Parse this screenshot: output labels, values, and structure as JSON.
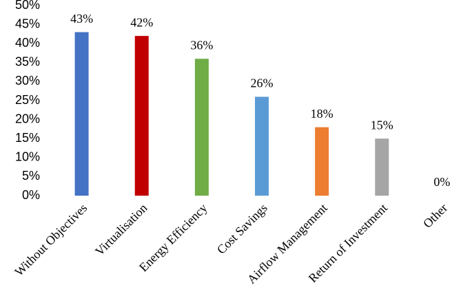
{
  "chart_data": {
    "type": "bar",
    "categories": [
      "Without Objectives",
      "Virtualisation",
      "Energy Efficiency",
      "Cost Savings",
      "Airflow Management",
      "Return of Investment",
      "Other"
    ],
    "values": [
      43,
      42,
      36,
      26,
      18,
      15,
      0
    ],
    "value_labels": [
      "43%",
      "42%",
      "36%",
      "26%",
      "18%",
      "15%",
      "0%"
    ],
    "colors": [
      "#4472c4",
      "#c00000",
      "#70ad47",
      "#5b9bd5",
      "#ed7d31",
      "#a5a5a5",
      "#7f7f7f"
    ],
    "ylim": [
      0,
      50
    ],
    "yticks": [
      {
        "value": 0,
        "label": "0%"
      },
      {
        "value": 5,
        "label": "5%"
      },
      {
        "value": 10,
        "label": "10%"
      },
      {
        "value": 15,
        "label": "15%"
      },
      {
        "value": 20,
        "label": "20%"
      },
      {
        "value": 25,
        "label": "25%"
      },
      {
        "value": 30,
        "label": "30%"
      },
      {
        "value": 35,
        "label": "35%"
      },
      {
        "value": 40,
        "label": "40%"
      },
      {
        "value": 45,
        "label": "45%"
      },
      {
        "value": 50,
        "label": "50%"
      }
    ],
    "grid": false
  }
}
